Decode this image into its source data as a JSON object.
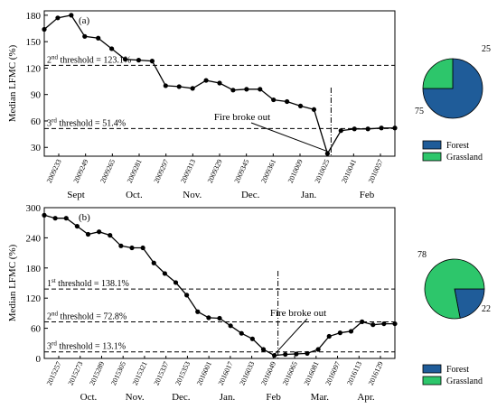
{
  "colors": {
    "forest": "#1F5C99",
    "grassland": "#2DC66B",
    "line": "#000000"
  },
  "chart_data": [
    {
      "type": "line",
      "panel_label": "(a)",
      "ylabel": "Median LFMC (%)",
      "ylim": [
        20,
        185
      ],
      "yticks": [
        30,
        60,
        90,
        120,
        150,
        180
      ],
      "xtick_labels": [
        "2009233",
        "2009249",
        "2009265",
        "2009281",
        "2009297",
        "2009313",
        "2009329",
        "2009345",
        "2009361",
        "2010009",
        "2010025",
        "2010041",
        "2010057"
      ],
      "month_labels": [
        "Sept",
        "Oct.",
        "Nov.",
        "Dec.",
        "Jan.",
        "Feb"
      ],
      "series": [
        {
          "values": [
            164,
            177,
            180,
            156,
            154,
            142,
            130,
            129,
            128,
            100,
            99,
            97,
            106,
            103,
            95,
            96,
            96,
            84,
            82,
            77,
            73,
            23,
            49,
            51,
            51,
            52,
            52
          ]
        }
      ],
      "thresholds": [
        {
          "label_pre": "2",
          "label_sup": "nd",
          "label_post": " threshold = 123.1%",
          "value": 123.1
        },
        {
          "label_pre": "3",
          "label_sup": "rd",
          "label_post": " threshold = 51.4%",
          "value": 51.4
        }
      ],
      "annotation": "Fire broke out",
      "pie": {
        "values": [
          75,
          25
        ],
        "value_labels": [
          "75",
          "25"
        ],
        "legend": [
          "Forest",
          "Grassland"
        ]
      }
    },
    {
      "type": "line",
      "panel_label": "(b)",
      "ylabel": "Median LFMC (%)",
      "ylim": [
        0,
        300
      ],
      "yticks": [
        0,
        60,
        120,
        180,
        240,
        300
      ],
      "xtick_labels": [
        "2015257",
        "2015273",
        "2015289",
        "2015305",
        "2015321",
        "2015337",
        "2015353",
        "2016001",
        "2016017",
        "2016033",
        "2016049",
        "2016065",
        "2016081",
        "2016097",
        "2016113",
        "2016129"
      ],
      "month_labels": [
        "Oct.",
        "Nov.",
        "Dec.",
        "Jan.",
        "Feb",
        "Mar.",
        "Apr."
      ],
      "series": [
        {
          "values": [
            285,
            279,
            279,
            263,
            247,
            252,
            245,
            224,
            220,
            220,
            190,
            169,
            151,
            126,
            93,
            81,
            80,
            65,
            50,
            39,
            18,
            6,
            8,
            9,
            10,
            18,
            44,
            51,
            54,
            73,
            67,
            69,
            69
          ]
        }
      ],
      "thresholds": [
        {
          "label_pre": "1",
          "label_sup": "st",
          "label_post": " threshold = 138.1%",
          "value": 138.1
        },
        {
          "label_pre": "2",
          "label_sup": "nd",
          "label_post": " threshold = 72.8%",
          "value": 72.8
        },
        {
          "label_pre": "3",
          "label_sup": "rd",
          "label_post": " threshold = 13.1%",
          "value": 13.1
        }
      ],
      "annotation": "Fire broke out",
      "pie": {
        "values": [
          22,
          78
        ],
        "value_labels": [
          "22",
          "78"
        ],
        "legend": [
          "Forest",
          "Grassland"
        ]
      }
    }
  ]
}
